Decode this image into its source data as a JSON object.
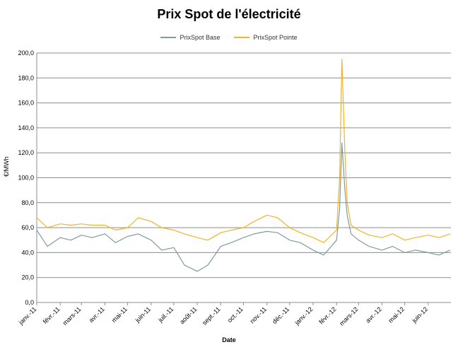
{
  "chart_data": {
    "type": "line",
    "title": "Prix Spot de l'électricité",
    "xlabel": "Date",
    "ylabel": "€/MWh",
    "ylim": [
      0,
      200
    ],
    "yticks": [
      "0,0",
      "20,0",
      "40,0",
      "60,0",
      "80,0",
      "100,0",
      "120,0",
      "140,0",
      "160,0",
      "180,0",
      "200,0"
    ],
    "xticks": [
      "janv.-11",
      "févr.-11",
      "mars-11",
      "avr.-11",
      "mai-11",
      "juin-11",
      "juil.-11",
      "août-11",
      "sept.-11",
      "oct.-11",
      "nov.-11",
      "déc.-11",
      "janv.-12",
      "févr.-12",
      "mars-12",
      "avr.-12",
      "mai-12",
      "juin-12"
    ],
    "grid": "horizontal",
    "legend_position": "top",
    "x_dates": [
      "2011-01-01",
      "2011-01-15",
      "2011-02-01",
      "2011-02-15",
      "2011-03-01",
      "2011-03-15",
      "2011-04-01",
      "2011-04-15",
      "2011-05-01",
      "2011-05-15",
      "2011-06-01",
      "2011-06-15",
      "2011-07-01",
      "2011-07-15",
      "2011-08-01",
      "2011-08-15",
      "2011-09-01",
      "2011-09-15",
      "2011-10-01",
      "2011-10-15",
      "2011-11-01",
      "2011-11-15",
      "2011-12-01",
      "2011-12-15",
      "2012-01-01",
      "2012-01-15",
      "2012-02-01",
      "2012-02-05",
      "2012-02-08",
      "2012-02-12",
      "2012-02-15",
      "2012-02-20",
      "2012-03-01",
      "2012-03-15",
      "2012-04-01",
      "2012-04-15",
      "2012-05-01",
      "2012-05-15",
      "2012-06-01",
      "2012-06-15",
      "2012-06-30"
    ],
    "series": [
      {
        "name": "PrixSpot Base",
        "color": "#7f9aa0",
        "values": [
          58,
          45,
          52,
          50,
          54,
          52,
          55,
          48,
          53,
          55,
          50,
          42,
          44,
          30,
          25,
          30,
          45,
          48,
          52,
          55,
          57,
          56,
          50,
          48,
          42,
          38,
          50,
          75,
          128,
          90,
          70,
          55,
          50,
          45,
          42,
          45,
          40,
          42,
          40,
          38,
          42
        ]
      },
      {
        "name": "PrixSpot Pointe",
        "color": "#f0b429",
        "values": [
          68,
          60,
          63,
          62,
          63,
          62,
          62,
          58,
          60,
          68,
          65,
          60,
          58,
          55,
          52,
          50,
          56,
          58,
          60,
          65,
          70,
          68,
          60,
          56,
          52,
          48,
          58,
          100,
          195,
          120,
          80,
          62,
          58,
          54,
          52,
          55,
          50,
          52,
          54,
          52,
          55
        ]
      }
    ]
  }
}
